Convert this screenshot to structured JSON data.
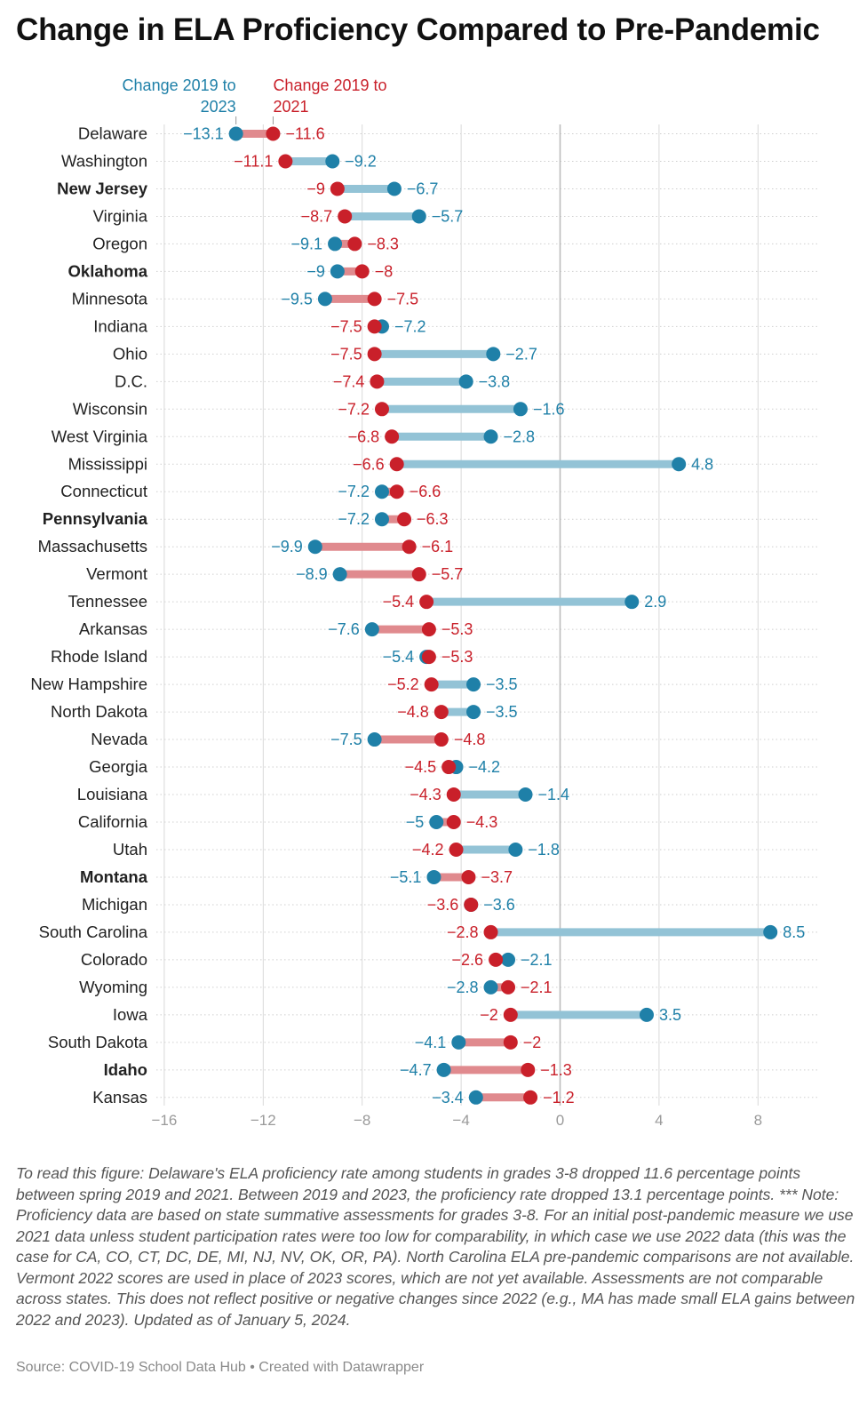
{
  "title": "Change in ELA Proficiency Compared to Pre-Pandemic",
  "footnote": "To read this figure: Delaware's ELA proficiency rate among students in grades 3-8 dropped 11.6 percentage points between spring 2019 and 2021. Between 2019 and 2023, the proficiency rate dropped 13.1 percentage points. *** Note: Proficiency data are based on state summative assessments for grades 3-8. For an initial post-pandemic measure we use 2021 data unless student participation rates were too low for comparability, in which case we use 2022 data (this was the case for CA, CO, CT, DC, DE, MI, NJ, NV, OK, OR, PA). North Carolina ELA pre-pandemic comparisons are not available. Vermont 2022 scores are used in place of 2023 scores, which are not yet available. Assessments are not comparable across states. This does not reflect positive or negative changes since 2022 (e.g., MA has made small ELA gains between 2022 and 2023). Updated as of January 5, 2024.",
  "source": "Source: COVID-19 School Data Hub • Created with Datawrapper",
  "colors": {
    "series_2023": "#1f80a8",
    "series_2021": "#c9202a",
    "bar_2023": "#93c3d6",
    "bar_2021": "#e08a8e",
    "grid": "#d9d9d9",
    "zero_line": "#bdbdbd",
    "tick_label": "#9a9a9a"
  },
  "chart_data": {
    "type": "dot-range",
    "title": "Change in ELA Proficiency Compared to Pre-Pandemic",
    "xlabel": "",
    "ylabel": "",
    "xlim": [
      -16,
      10.5
    ],
    "xticks": [
      -16,
      -12,
      -8,
      -4,
      0,
      4,
      8
    ],
    "xtick_labels": [
      "−16",
      "−12",
      "−8",
      "−4",
      "0",
      "4",
      "8"
    ],
    "grid": true,
    "legend": [
      {
        "key": "change_2023",
        "label": "Change 2019 to 2023",
        "lines": [
          "Change 2019 to",
          "2023"
        ]
      },
      {
        "key": "change_2021",
        "label": "Change 2019 to 2021",
        "lines": [
          "Change 2019 to",
          "2021"
        ]
      }
    ],
    "rows": [
      {
        "state": "Delaware",
        "bold": false,
        "change_2021": -11.6,
        "change_2023": -13.1
      },
      {
        "state": "Washington",
        "bold": false,
        "change_2021": -11.1,
        "change_2023": -9.2
      },
      {
        "state": "New Jersey",
        "bold": true,
        "change_2021": -9,
        "change_2023": -6.7
      },
      {
        "state": "Virginia",
        "bold": false,
        "change_2021": -8.7,
        "change_2023": -5.7
      },
      {
        "state": "Oregon",
        "bold": false,
        "change_2021": -8.3,
        "change_2023": -9.1
      },
      {
        "state": "Oklahoma",
        "bold": true,
        "change_2021": -8,
        "change_2023": -9
      },
      {
        "state": "Minnesota",
        "bold": false,
        "change_2021": -7.5,
        "change_2023": -9.5
      },
      {
        "state": "Indiana",
        "bold": false,
        "change_2021": -7.5,
        "change_2023": -7.2
      },
      {
        "state": "Ohio",
        "bold": false,
        "change_2021": -7.5,
        "change_2023": -2.7
      },
      {
        "state": "D.C.",
        "bold": false,
        "change_2021": -7.4,
        "change_2023": -3.8
      },
      {
        "state": "Wisconsin",
        "bold": false,
        "change_2021": -7.2,
        "change_2023": -1.6
      },
      {
        "state": "West Virginia",
        "bold": false,
        "change_2021": -6.8,
        "change_2023": -2.8
      },
      {
        "state": "Mississippi",
        "bold": false,
        "change_2021": -6.6,
        "change_2023": 4.8
      },
      {
        "state": "Connecticut",
        "bold": false,
        "change_2021": -6.6,
        "change_2023": -7.2
      },
      {
        "state": "Pennsylvania",
        "bold": true,
        "change_2021": -6.3,
        "change_2023": -7.2
      },
      {
        "state": "Massachusetts",
        "bold": false,
        "change_2021": -6.1,
        "change_2023": -9.9
      },
      {
        "state": "Vermont",
        "bold": false,
        "change_2021": -5.7,
        "change_2023": -8.9
      },
      {
        "state": "Tennessee",
        "bold": false,
        "change_2021": -5.4,
        "change_2023": 2.9
      },
      {
        "state": "Arkansas",
        "bold": false,
        "change_2021": -5.3,
        "change_2023": -7.6
      },
      {
        "state": "Rhode Island",
        "bold": false,
        "change_2021": -5.3,
        "change_2023": -5.4
      },
      {
        "state": "New Hampshire",
        "bold": false,
        "change_2021": -5.2,
        "change_2023": -3.5
      },
      {
        "state": "North Dakota",
        "bold": false,
        "change_2021": -4.8,
        "change_2023": -3.5
      },
      {
        "state": "Nevada",
        "bold": false,
        "change_2021": -4.8,
        "change_2023": -7.5
      },
      {
        "state": "Georgia",
        "bold": false,
        "change_2021": -4.5,
        "change_2023": -4.2
      },
      {
        "state": "Louisiana",
        "bold": false,
        "change_2021": -4.3,
        "change_2023": -1.4
      },
      {
        "state": "California",
        "bold": false,
        "change_2021": -4.3,
        "change_2023": -5
      },
      {
        "state": "Utah",
        "bold": false,
        "change_2021": -4.2,
        "change_2023": -1.8
      },
      {
        "state": "Montana",
        "bold": true,
        "change_2021": -3.7,
        "change_2023": -5.1
      },
      {
        "state": "Michigan",
        "bold": false,
        "change_2021": -3.6,
        "change_2023": -3.6
      },
      {
        "state": "South Carolina",
        "bold": false,
        "change_2021": -2.8,
        "change_2023": 8.5
      },
      {
        "state": "Colorado",
        "bold": false,
        "change_2021": -2.6,
        "change_2023": -2.1
      },
      {
        "state": "Wyoming",
        "bold": false,
        "change_2021": -2.1,
        "change_2023": -2.8
      },
      {
        "state": "Iowa",
        "bold": false,
        "change_2021": -2,
        "change_2023": 3.5
      },
      {
        "state": "South Dakota",
        "bold": false,
        "change_2021": -2,
        "change_2023": -4.1
      },
      {
        "state": "Idaho",
        "bold": true,
        "change_2021": -1.3,
        "change_2023": -4.7
      },
      {
        "state": "Kansas",
        "bold": false,
        "change_2021": -1.2,
        "change_2023": -3.4
      }
    ]
  }
}
